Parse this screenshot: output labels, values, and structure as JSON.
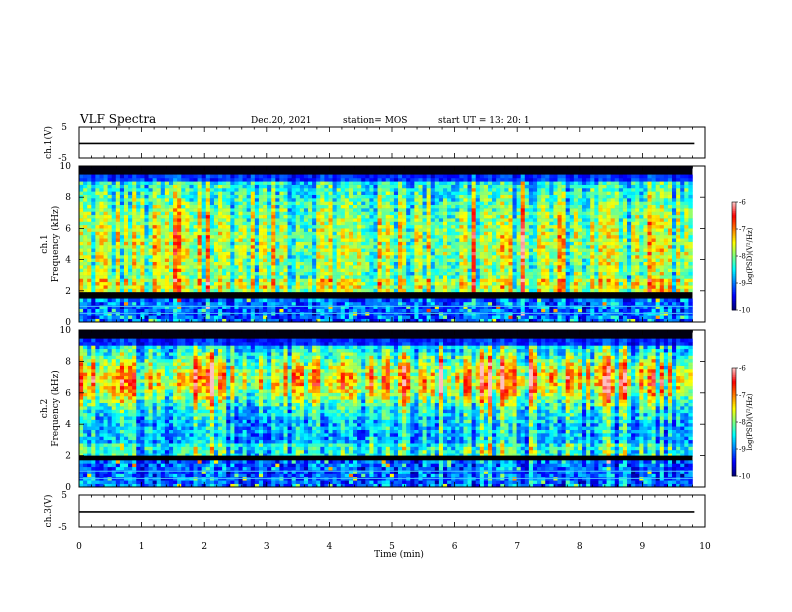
{
  "header": {
    "title": "VLF Spectra",
    "date": "Dec.20, 2021",
    "station": "station= MOS",
    "start": "start  UT  =   13: 20: 1"
  },
  "chart_data": [
    {
      "type": "line",
      "name": "ch1-waveform",
      "ylabel": "ch.1(V)",
      "ylim": [
        -5,
        5
      ],
      "yticks": [
        "5",
        "-5"
      ],
      "xlim": [
        0,
        10
      ],
      "level": -0.3
    },
    {
      "type": "heatmap",
      "name": "ch1-spectrogram",
      "ylabel": "ch.1\nFrequency (kHz)",
      "ylabel_lines": [
        "ch.1",
        "Frequency (kHz)"
      ],
      "ylim": [
        0,
        10
      ],
      "yticks": [
        "0",
        "2",
        "4",
        "6",
        "8",
        "10"
      ],
      "xlim": [
        0,
        9.8
      ],
      "band_gap_khz": [
        1.6,
        1.85
      ],
      "dominant_band_khz": [
        2,
        9
      ],
      "colorbar": {
        "label": "log(PSD)(V²/Hz)",
        "min": -10,
        "max": -6,
        "ticks": [
          "-6",
          "-7",
          "-8",
          "-9",
          "-10"
        ]
      }
    },
    {
      "type": "heatmap",
      "name": "ch2-spectrogram",
      "ylabel": "ch.2\nFrequency (kHz)",
      "ylabel_lines": [
        "ch.2",
        "Frequency (kHz)"
      ],
      "ylim": [
        0,
        10
      ],
      "yticks": [
        "0",
        "2",
        "4",
        "6",
        "8",
        "10"
      ],
      "xlim": [
        0,
        9.8
      ],
      "band_gap_khz": [
        1.7,
        2.0
      ],
      "dominant_band_khz": [
        5,
        8
      ],
      "colorbar": {
        "label": "log(PSD)(V²/Hz)",
        "min": -10,
        "max": -6,
        "ticks": [
          "-6",
          "-7",
          "-8",
          "-9",
          "-10"
        ]
      }
    },
    {
      "type": "line",
      "name": "ch3-waveform",
      "ylabel": "ch.3(V)",
      "ylim": [
        -5,
        5
      ],
      "yticks": [
        "5",
        "-5"
      ],
      "xlim": [
        0,
        10
      ],
      "level": -0.3
    }
  ],
  "xaxis": {
    "label": "Time  (min)",
    "ticks": [
      "0",
      "1",
      "2",
      "3",
      "4",
      "5",
      "6",
      "7",
      "8",
      "9",
      "10"
    ]
  },
  "colors": {
    "jet": [
      "#00007f",
      "#0000ff",
      "#007fff",
      "#00ffff",
      "#7fff7f",
      "#ffff00",
      "#ff7f00",
      "#ff0000",
      "#ffbfbf"
    ]
  }
}
